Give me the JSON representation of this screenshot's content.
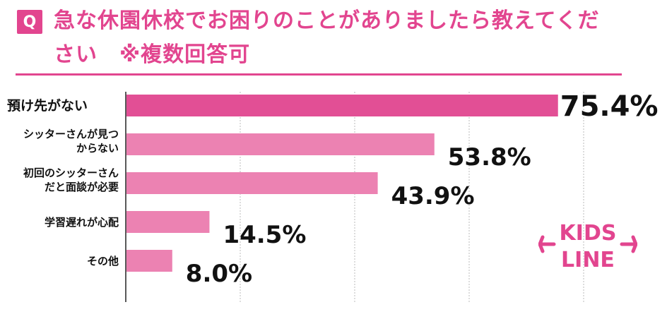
{
  "header": {
    "q_label": "Q",
    "title": "急な休園休校でお困りのことがありましたら教えてください　※複数回答可"
  },
  "logo": {
    "text_line1": "KIDS",
    "text_line2": "LINE"
  },
  "colors": {
    "accent": "#e2458f",
    "bar_primary": "#e24f95",
    "bar_secondary": "#ec82b2",
    "value_text": "#111111",
    "grid": "#bbbbbb"
  },
  "chart_data": {
    "type": "bar",
    "orientation": "horizontal",
    "categories": [
      [
        "預け先がない"
      ],
      [
        "シッターさんが見つ",
        "からない"
      ],
      [
        "初回のシッターさん",
        "だと面談が必要"
      ],
      [
        "学習遅れが心配"
      ],
      [
        "その他"
      ]
    ],
    "values": [
      75.4,
      53.8,
      43.9,
      14.5,
      8.0
    ],
    "value_labels": [
      "75.4%",
      "53.8%",
      "43.9%",
      "14.5%",
      "8.0%"
    ],
    "xlim": [
      0,
      100
    ],
    "grid": true,
    "gridlines": [
      0,
      20,
      40,
      60,
      80
    ]
  }
}
